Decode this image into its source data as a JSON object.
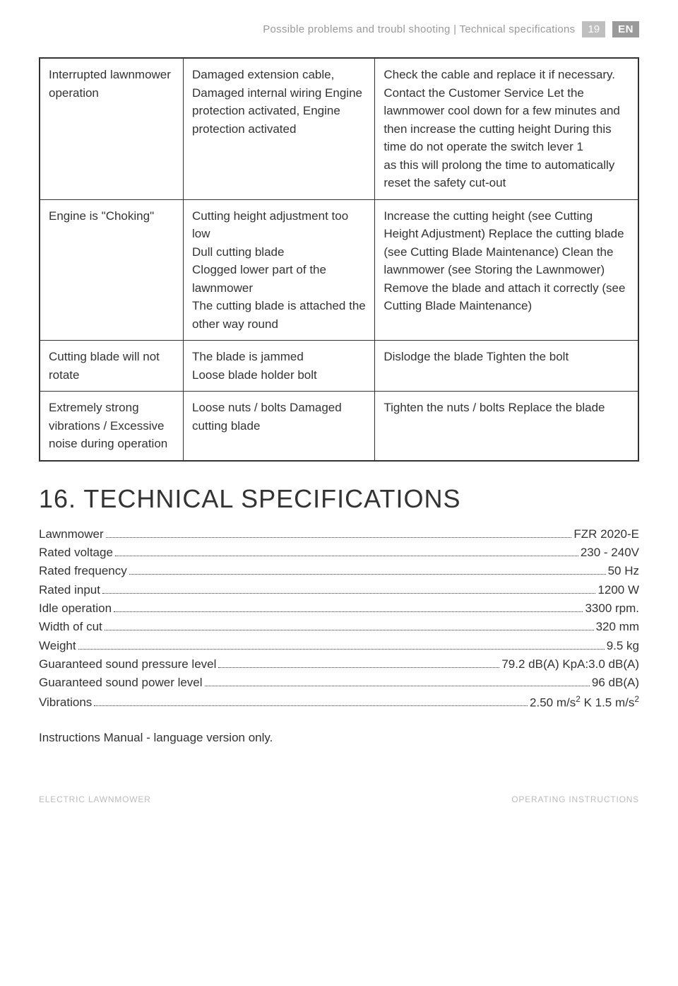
{
  "header": {
    "breadcrumb": "Possible problems and troubl shooting | Technical specifications",
    "page_number": "19",
    "lang": "EN"
  },
  "troubleshooting": {
    "rows": [
      {
        "problem": "Interrupted lawnmower operation",
        "cause": "Damaged extension cable, Damaged internal wiring Engine protection activated, Engine protection activated",
        "remedy": "Check the cable and replace it if necessary. Contact the Customer Service  Let the lawnmower cool down for a few minutes and then increase the cutting height During this time do not operate the switch lever 1\nas this will prolong the time to automatically\nreset the safety cut-out"
      },
      {
        "problem": "Engine is \"Choking\"",
        "cause": "Cutting height adjustment too low\nDull cutting blade\nClogged lower part of the lawnmower\nThe cutting blade is attached the other way round",
        "remedy": "Increase the cutting height (see Cutting Height Adjustment) Replace the cutting blade (see Cutting Blade Maintenance) Clean the lawnmower (see Storing the Lawnmower) Remove the blade and attach it correctly (see Cutting Blade Maintenance)"
      },
      {
        "problem": "Cutting blade will not rotate",
        "cause": "The blade is jammed\nLoose blade holder bolt",
        "remedy": "Dislodge the blade Tighten the bolt"
      },
      {
        "problem": "Extremely strong vibrations / Excessive noise during operation",
        "cause": "Loose nuts / bolts Damaged cutting blade",
        "remedy": "Tighten the nuts / bolts Replace the blade"
      }
    ]
  },
  "specs": {
    "heading": "16. TECHNICAL SPECIFICATIONS",
    "items": [
      {
        "label": "Lawnmower",
        "value": " FZR 2020-E"
      },
      {
        "label": "Rated voltage",
        "value": "230 - 240V"
      },
      {
        "label": "Rated frequency",
        "value": " 50 Hz"
      },
      {
        "label": "Rated input",
        "value": "1200 W"
      },
      {
        "label": "Idle operation",
        "value": "3300 rpm."
      },
      {
        "label": "Width of cut",
        "value": " 320 mm"
      },
      {
        "label": "Weight",
        "value": " 9.5 kg"
      },
      {
        "label": "Guaranteed sound pressure level",
        "value": "79.2 dB(A) KpA:3.0 dB(A)"
      },
      {
        "label": "Guaranteed sound power level",
        "value": " 96 dB(A)"
      },
      {
        "label": "Vibrations",
        "value_html": "2.50 m/s<sup>2</sup> K 1.5 m/s<sup>2</sup>"
      }
    ]
  },
  "note": "Instructions Manual - language version only.",
  "footer": {
    "left": "ELECTRIC LAWNMOWER",
    "right": "OPERATING INSTRUCTIONS"
  }
}
